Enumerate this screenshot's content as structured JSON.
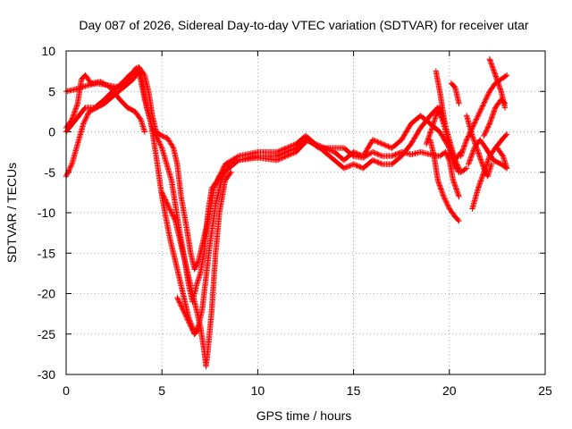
{
  "chart_data": {
    "type": "scatter",
    "title": "Day 087 of 2026, Sidereal Day-to-day VTEC variation (SDTVAR) for receiver utar",
    "xlabel": "GPS time / hours",
    "ylabel": "SDTVAR / TECUs",
    "xlim": [
      0,
      25
    ],
    "ylim": [
      -30,
      10
    ],
    "x_ticks": [
      0,
      5,
      10,
      15,
      20,
      25
    ],
    "y_ticks": [
      10,
      5,
      0,
      -5,
      -10,
      -15,
      -20,
      -25,
      -30
    ],
    "grid": true,
    "legend": "none",
    "marker": "plus",
    "series_color": "#ff0000",
    "series": [
      {
        "values": [
          [
            0.0,
            0.5
          ],
          [
            0.3,
            1.5
          ],
          [
            0.6,
            3.5
          ],
          [
            0.8,
            6.5
          ],
          [
            1.0,
            7.0
          ],
          [
            1.3,
            6.0
          ],
          [
            1.8,
            6.2
          ],
          [
            2.3,
            5.5
          ],
          [
            2.8,
            4.0
          ],
          [
            3.2,
            3.0
          ],
          [
            3.6,
            2.5
          ],
          [
            3.9,
            1.5
          ],
          [
            4.1,
            0.0
          ]
        ]
      },
      {
        "values": [
          [
            0.0,
            5.0
          ],
          [
            0.4,
            5.2
          ],
          [
            0.8,
            5.5
          ],
          [
            1.2,
            5.8
          ],
          [
            1.6,
            6.0
          ],
          [
            2.1,
            5.8
          ],
          [
            2.5,
            5.6
          ],
          [
            2.9,
            5.5
          ],
          [
            3.3,
            6.5
          ],
          [
            3.6,
            7.8
          ],
          [
            3.8,
            8.0
          ],
          [
            4.1,
            7.0
          ],
          [
            4.3,
            5.0
          ],
          [
            4.5,
            2.0
          ],
          [
            4.7,
            0.0
          ],
          [
            5.0,
            -0.5
          ],
          [
            5.3,
            -0.8
          ],
          [
            5.6,
            -2.0
          ],
          [
            5.8,
            -4.0
          ],
          [
            6.0,
            -8.0
          ],
          [
            6.3,
            -12.0
          ],
          [
            6.5,
            -15.0
          ],
          [
            6.7,
            -17.0
          ],
          [
            6.9,
            -16.0
          ],
          [
            7.1,
            -14.0
          ],
          [
            7.3,
            -12.0
          ],
          [
            7.5,
            -10.0
          ],
          [
            7.7,
            -7.0
          ],
          [
            8.0,
            -5.5
          ],
          [
            8.5,
            -4.5
          ],
          [
            9.0,
            -3.5
          ],
          [
            10.0,
            -3.2
          ],
          [
            11.0,
            -3.5
          ],
          [
            12.0,
            -2.5
          ],
          [
            12.6,
            -1.0
          ],
          [
            13.2,
            -2.0
          ],
          [
            14.0,
            -2.0
          ],
          [
            14.5,
            -2.0
          ],
          [
            15.0,
            -3.0
          ],
          [
            15.5,
            -3.2
          ],
          [
            16.0,
            -2.5
          ],
          [
            16.5,
            -3.0
          ],
          [
            17.0,
            -3.0
          ],
          [
            17.5,
            -2.5
          ],
          [
            18.0,
            -2.8
          ],
          [
            18.5,
            -2.5
          ],
          [
            19.0,
            -2.8
          ],
          [
            19.5,
            -3.0
          ],
          [
            19.8,
            -2.5
          ],
          [
            20.0,
            -3.5
          ],
          [
            20.2,
            -6.0
          ],
          [
            20.5,
            -8.0
          ]
        ]
      },
      {
        "values": [
          [
            0.0,
            0.0
          ],
          [
            0.5,
            1.5
          ],
          [
            1.0,
            3.0
          ],
          [
            1.5,
            3.0
          ],
          [
            2.0,
            4.0
          ],
          [
            2.5,
            5.2
          ],
          [
            2.9,
            6.0
          ],
          [
            3.3,
            7.0
          ],
          [
            3.6,
            7.5
          ],
          [
            3.8,
            7.8
          ],
          [
            4.0,
            6.0
          ],
          [
            4.2,
            3.0
          ],
          [
            4.5,
            0.5
          ],
          [
            5.0,
            -2.0
          ],
          [
            5.5,
            -6.0
          ],
          [
            5.9,
            -12.0
          ],
          [
            6.2,
            -16.0
          ],
          [
            6.4,
            -19.0
          ],
          [
            6.6,
            -21.0
          ],
          [
            6.8,
            -19.0
          ],
          [
            7.0,
            -17.5
          ],
          [
            7.2,
            -15.0
          ],
          [
            7.4,
            -10.0
          ],
          [
            7.6,
            -7.0
          ],
          [
            7.9,
            -6.0
          ],
          [
            8.3,
            -4.0
          ],
          [
            9.0,
            -3.0
          ],
          [
            10.0,
            -2.5
          ],
          [
            11.0,
            -2.5
          ],
          [
            12.0,
            -1.5
          ],
          [
            12.5,
            -0.5
          ],
          [
            13.0,
            -1.5
          ],
          [
            13.5,
            -2.5
          ],
          [
            14.0,
            -3.5
          ],
          [
            14.5,
            -4.5
          ],
          [
            15.0,
            -4.0
          ],
          [
            15.5,
            -4.5
          ],
          [
            16.0,
            -3.5
          ],
          [
            16.5,
            -4.0
          ],
          [
            17.0,
            -4.0
          ],
          [
            17.5,
            -3.0
          ],
          [
            18.0,
            -1.5
          ],
          [
            18.5,
            0.5
          ],
          [
            19.0,
            2.0
          ],
          [
            19.4,
            3.0
          ],
          [
            19.7,
            1.0
          ],
          [
            20.0,
            -1.5
          ],
          [
            20.3,
            -4.0
          ],
          [
            20.5,
            -5.0
          ]
        ]
      },
      {
        "values": [
          [
            0.0,
            -5.5
          ],
          [
            0.3,
            -4.0
          ],
          [
            0.6,
            -1.5
          ],
          [
            0.9,
            1.0
          ],
          [
            1.2,
            2.5
          ],
          [
            1.6,
            3.0
          ],
          [
            2.0,
            3.5
          ],
          [
            2.5,
            4.5
          ],
          [
            3.0,
            5.5
          ],
          [
            3.5,
            6.5
          ],
          [
            3.8,
            7.5
          ],
          [
            4.1,
            4.0
          ],
          [
            4.4,
            1.5
          ],
          [
            4.7,
            -3.0
          ],
          [
            5.0,
            -8.0
          ],
          [
            5.4,
            -13.0
          ],
          [
            5.8,
            -17.0
          ],
          [
            6.1,
            -20.0
          ],
          [
            6.4,
            -23.0
          ],
          [
            6.7,
            -25.0
          ],
          [
            6.9,
            -24.0
          ],
          [
            7.1,
            -22.0
          ],
          [
            7.3,
            -18.0
          ],
          [
            7.5,
            -14.0
          ],
          [
            7.8,
            -9.0
          ],
          [
            8.1,
            -6.0
          ],
          [
            8.5,
            -4.0
          ],
          [
            9.0,
            -3.5
          ],
          [
            10.0,
            -3.0
          ],
          [
            11.0,
            -3.0
          ],
          [
            12.0,
            -2.0
          ],
          [
            12.5,
            -1.0
          ],
          [
            13.0,
            -1.5
          ],
          [
            14.0,
            -2.5
          ],
          [
            14.5,
            -3.5
          ],
          [
            15.0,
            -2.5
          ],
          [
            15.5,
            -3.0
          ],
          [
            16.0,
            -1.0
          ],
          [
            16.5,
            -1.5
          ],
          [
            17.0,
            -2.0
          ],
          [
            17.5,
            -1.0
          ],
          [
            18.0,
            1.0
          ],
          [
            18.5,
            2.0
          ],
          [
            19.0,
            1.0
          ],
          [
            19.5,
            0.0
          ],
          [
            20.0,
            -2.0
          ],
          [
            20.3,
            -3.5
          ],
          [
            20.6,
            -2.5
          ]
        ]
      },
      {
        "values": [
          [
            5.0,
            -7.5
          ],
          [
            5.3,
            -9.0
          ],
          [
            5.7,
            -11.0
          ],
          [
            6.0,
            -14.0
          ],
          [
            6.4,
            -18.0
          ],
          [
            6.7,
            -21.0
          ],
          [
            7.0,
            -24.0
          ],
          [
            7.2,
            -27.0
          ],
          [
            7.3,
            -29.0
          ],
          [
            7.4,
            -27.0
          ],
          [
            7.6,
            -22.0
          ],
          [
            7.8,
            -15.0
          ],
          [
            8.0,
            -10.0
          ],
          [
            8.3,
            -6.0
          ],
          [
            8.6,
            -5.0
          ]
        ]
      },
      {
        "values": [
          [
            5.8,
            -20.5
          ],
          [
            6.1,
            -22.0
          ],
          [
            6.4,
            -23.5
          ],
          [
            6.7,
            -25.0
          ],
          [
            6.9,
            -24.5
          ]
        ]
      },
      {
        "values": [
          [
            18.8,
            -1.5
          ],
          [
            19.1,
            0.5
          ],
          [
            19.3,
            2.0
          ],
          [
            19.5,
            3.0
          ],
          [
            19.7,
            1.5
          ],
          [
            20.0,
            -1.0
          ],
          [
            20.3,
            -3.5
          ],
          [
            20.6,
            -5.0
          ],
          [
            20.9,
            -4.5
          ]
        ]
      },
      {
        "values": [
          [
            19.0,
            -1.0
          ],
          [
            19.2,
            -3.0
          ],
          [
            19.4,
            -6.0
          ],
          [
            19.7,
            -8.0
          ],
          [
            20.0,
            -9.5
          ],
          [
            20.3,
            -10.5
          ],
          [
            20.5,
            -11.0
          ]
        ]
      },
      {
        "values": [
          [
            19.3,
            7.5
          ],
          [
            19.5,
            5.0
          ],
          [
            19.7,
            2.0
          ],
          [
            19.9,
            -1.0
          ],
          [
            20.1,
            -3.0
          ],
          [
            20.3,
            -4.5
          ]
        ]
      },
      {
        "values": [
          [
            20.1,
            6.0
          ],
          [
            20.3,
            5.5
          ],
          [
            20.5,
            3.5
          ]
        ]
      },
      {
        "values": [
          [
            20.6,
            -3.0
          ],
          [
            20.9,
            -1.0
          ],
          [
            21.2,
            0.5
          ],
          [
            21.5,
            2.0
          ],
          [
            21.8,
            3.5
          ],
          [
            22.1,
            5.0
          ],
          [
            22.4,
            6.0
          ],
          [
            22.7,
            6.5
          ],
          [
            23.0,
            7.0
          ]
        ]
      },
      {
        "values": [
          [
            21.0,
            -4.0
          ],
          [
            21.3,
            -2.0
          ],
          [
            21.6,
            -1.0
          ],
          [
            21.9,
            -2.0
          ],
          [
            22.3,
            -3.5
          ],
          [
            22.7,
            -4.0
          ],
          [
            23.0,
            -4.5
          ]
        ]
      },
      {
        "values": [
          [
            20.9,
            2.0
          ],
          [
            21.2,
            -0.5
          ],
          [
            21.5,
            -2.5
          ],
          [
            21.8,
            -4.5
          ],
          [
            22.0,
            -5.5
          ],
          [
            22.2,
            -4.0
          ]
        ]
      },
      {
        "values": [
          [
            21.2,
            -9.5
          ],
          [
            21.5,
            -7.0
          ],
          [
            21.8,
            -5.0
          ],
          [
            22.1,
            -3.0
          ],
          [
            22.4,
            -2.0
          ],
          [
            22.8,
            -0.8
          ],
          [
            23.0,
            -0.3
          ]
        ]
      },
      {
        "values": [
          [
            21.8,
            -0.5
          ],
          [
            22.1,
            1.0
          ],
          [
            22.4,
            3.0
          ],
          [
            22.7,
            4.0
          ],
          [
            22.9,
            3.5
          ]
        ]
      },
      {
        "values": [
          [
            22.1,
            9.0
          ],
          [
            22.4,
            7.0
          ],
          [
            22.7,
            5.0
          ],
          [
            22.9,
            3.0
          ]
        ]
      },
      {
        "values": [
          [
            22.5,
            -2.0
          ],
          [
            22.8,
            -3.0
          ],
          [
            23.0,
            -4.5
          ]
        ]
      }
    ]
  }
}
